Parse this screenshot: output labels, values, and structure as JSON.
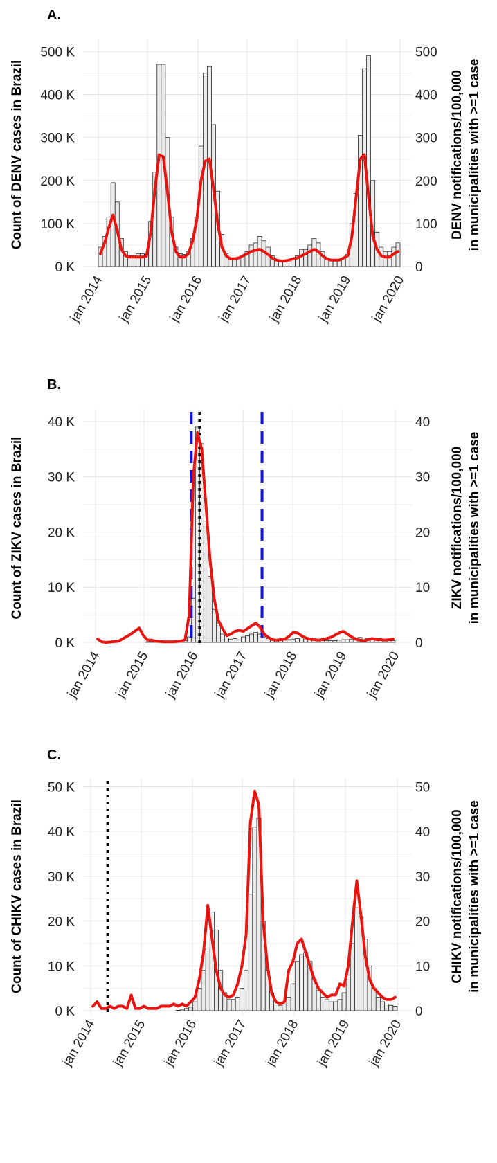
{
  "chart_data": [
    {
      "type": "bar",
      "panel_label": "A.",
      "ylabel_left": "Count of DENV cases in Brazil",
      "ylabel_right_lines": [
        "DENV notifications/100,000",
        "in municipalities with >=1 case"
      ],
      "y_ticks_left": [
        "0 K",
        "100 K",
        "200 K",
        "300 K",
        "400 K",
        "500 K"
      ],
      "y_ticks_right": [
        "0",
        "100",
        "200",
        "300",
        "400",
        "500"
      ],
      "x_ticks": [
        "jan 2014",
        "jan 2015",
        "jan 2016",
        "jan 2017",
        "jan 2018",
        "jan 2019",
        "jan 2020"
      ],
      "ylim": [
        0,
        520000
      ],
      "rate_scale": 1000,
      "grid": true,
      "bars_monthly": [
        45000,
        70000,
        115000,
        195000,
        150000,
        65000,
        35000,
        25000,
        25000,
        30000,
        30000,
        28000,
        105000,
        220000,
        470000,
        470000,
        300000,
        115000,
        45000,
        30000,
        28000,
        35000,
        65000,
        115000,
        280000,
        450000,
        465000,
        330000,
        175000,
        75000,
        30000,
        18000,
        15000,
        20000,
        25000,
        35000,
        50000,
        55000,
        70000,
        60000,
        45000,
        25000,
        15000,
        12000,
        12000,
        15000,
        20000,
        25000,
        40000,
        40000,
        50000,
        65000,
        55000,
        35000,
        20000,
        15000,
        15000,
        15000,
        20000,
        28000,
        100000,
        170000,
        305000,
        460000,
        490000,
        200000,
        80000,
        45000,
        35000,
        35000,
        45000,
        55000
      ],
      "series": [
        {
          "name": "notifications/100,000",
          "x_months": [
            0,
            1,
            2,
            3,
            4,
            5,
            6,
            7,
            8,
            9,
            10,
            11,
            12,
            13,
            14,
            15,
            16,
            17,
            18,
            19,
            20,
            21,
            22,
            23,
            24,
            25,
            26,
            27,
            28,
            29,
            30,
            31,
            32,
            33,
            34,
            35,
            36,
            37,
            38,
            39,
            40,
            41,
            42,
            43,
            44,
            45,
            46,
            47,
            48,
            49,
            50,
            51,
            52,
            53,
            54,
            55,
            56,
            57,
            58,
            59,
            60,
            61,
            62,
            63,
            64,
            65,
            66,
            67,
            68,
            69,
            70,
            71
          ],
          "values": [
            30,
            55,
            90,
            120,
            85,
            40,
            25,
            22,
            22,
            22,
            22,
            24,
            80,
            180,
            260,
            255,
            175,
            80,
            35,
            22,
            22,
            30,
            60,
            110,
            200,
            245,
            250,
            180,
            100,
            45,
            25,
            18,
            18,
            20,
            25,
            30,
            35,
            38,
            40,
            35,
            28,
            20,
            15,
            13,
            13,
            15,
            18,
            20,
            25,
            30,
            35,
            40,
            35,
            25,
            18,
            15,
            15,
            15,
            20,
            25,
            70,
            160,
            250,
            260,
            160,
            70,
            40,
            25,
            22,
            22,
            30,
            35
          ]
        }
      ]
    },
    {
      "type": "bar",
      "panel_label": "B.",
      "ylabel_left": "Count of ZIKV cases in Brazil",
      "ylabel_right_lines": [
        "ZIKV notifications/100,000",
        "in municipalities with >=1 case"
      ],
      "y_ticks_left": [
        "0 K",
        "10 K",
        "20 K",
        "30 K",
        "40 K"
      ],
      "y_ticks_right": [
        "0",
        "10",
        "20",
        "30",
        "40"
      ],
      "x_ticks": [
        "jan 2014",
        "jan 2015",
        "jan 2016",
        "jan 2017",
        "jan 2018",
        "jan 2019",
        "jan 2020"
      ],
      "ylim": [
        0,
        41500
      ],
      "rate_scale": 1000,
      "grid": true,
      "bars_monthly": [
        0,
        0,
        0,
        0,
        0,
        0,
        0,
        0,
        0,
        0,
        0,
        0,
        100,
        200,
        200,
        200,
        200,
        200,
        200,
        200,
        200,
        300,
        1000,
        8000,
        39000,
        36000,
        22000,
        12000,
        6000,
        3500,
        1500,
        800,
        600,
        700,
        800,
        1000,
        1200,
        1500,
        1800,
        1500,
        1000,
        700,
        500,
        400,
        400,
        400,
        500,
        600,
        700,
        800,
        900,
        700,
        500,
        400,
        300,
        300,
        300,
        300,
        400,
        500,
        500,
        600,
        700,
        900,
        800,
        700,
        500,
        400,
        300,
        300,
        300,
        300
      ],
      "series": [
        {
          "name": "notifications/100,000",
          "x_months": [
            0,
            1,
            2,
            5,
            8,
            10,
            11,
            12,
            13,
            14,
            16,
            18,
            20,
            21,
            22,
            23,
            24,
            25,
            26,
            27,
            28,
            29,
            30,
            31,
            32,
            33,
            34,
            35,
            36,
            37,
            38,
            39,
            40,
            41,
            42,
            43,
            44,
            45,
            46,
            47,
            48,
            49,
            50,
            51,
            52,
            53,
            54,
            55,
            56,
            57,
            58,
            59,
            60,
            61,
            62,
            63,
            64,
            65,
            66,
            67,
            68,
            69,
            70,
            71
          ],
          "values": [
            0.6,
            0.1,
            0,
            0.2,
            1.5,
            2.6,
            1.2,
            0.4,
            0.4,
            0.2,
            0.1,
            0.1,
            0.2,
            0.5,
            5,
            30,
            38,
            35,
            25,
            15,
            8,
            4,
            2.5,
            1.2,
            1.5,
            2,
            2.2,
            2,
            2.5,
            3,
            3.5,
            2.8,
            1.5,
            0.9,
            0.5,
            0.4,
            0.5,
            0.6,
            1.1,
            1.8,
            1.7,
            1.2,
            0.8,
            0.6,
            0.5,
            0.4,
            0.5,
            0.7,
            0.9,
            1.3,
            1.7,
            2,
            1.5,
            1,
            0.6,
            0.4,
            0.3,
            0.5,
            0.7,
            0.5,
            0.5,
            0.4,
            0.5,
            0.6
          ]
        }
      ],
      "vlines": [
        {
          "month": 22.5,
          "style": "blue-dashed"
        },
        {
          "month": 39.5,
          "style": "blue-dashed"
        },
        {
          "month": 24.5,
          "style": "black-dotted"
        }
      ]
    },
    {
      "type": "bar",
      "panel_label": "C.",
      "ylabel_left": "Count of CHIKV cases in Brazil",
      "ylabel_right_lines": [
        "CHIKV notifications/100,000",
        "in municipalities with >=1 case"
      ],
      "y_ticks_left": [
        "0 K",
        "10 K",
        "20 K",
        "30 K",
        "40 K",
        "50 K"
      ],
      "y_ticks_right": [
        "0",
        "10",
        "20",
        "30",
        "40",
        "50"
      ],
      "x_ticks": [
        "jan 2014",
        "jan 2015",
        "jan 2016",
        "jan 2017",
        "jan 2018",
        "jan 2019",
        "jan 2020"
      ],
      "ylim": [
        0,
        51000
      ],
      "rate_scale": 1000,
      "grid": true,
      "bars_monthly": [
        0,
        0,
        0,
        0,
        0,
        0,
        0,
        0,
        0,
        0,
        0,
        0,
        0,
        0,
        0,
        0,
        0,
        0,
        0,
        0,
        100,
        300,
        500,
        800,
        2000,
        5000,
        9000,
        14000,
        22000,
        18000,
        9000,
        4000,
        2500,
        2500,
        3000,
        5000,
        9000,
        26000,
        41000,
        43000,
        20000,
        9000,
        4000,
        1500,
        1200,
        1500,
        3000,
        6000,
        11000,
        12500,
        13000,
        11000,
        7000,
        4500,
        3000,
        2500,
        2000,
        2000,
        2500,
        4000,
        8000,
        15000,
        23000,
        21000,
        16000,
        10000,
        5000,
        3000,
        2000,
        1500,
        1200,
        1000
      ],
      "series": [
        {
          "name": "notifications/100,000",
          "x_months": [
            0,
            1,
            2,
            3,
            4,
            5,
            6,
            7,
            8,
            9,
            10,
            11,
            12,
            13,
            14,
            15,
            16,
            17,
            18,
            19,
            20,
            21,
            22,
            23,
            24,
            25,
            26,
            27,
            28,
            29,
            30,
            31,
            32,
            33,
            34,
            35,
            36,
            37,
            38,
            39,
            40,
            41,
            42,
            43,
            44,
            45,
            46,
            47,
            48,
            49,
            50,
            51,
            52,
            53,
            54,
            55,
            56,
            57,
            58,
            59,
            60,
            61,
            62,
            63,
            64,
            65,
            66,
            67,
            68,
            69,
            70,
            71
          ],
          "values": [
            1,
            2,
            0.5,
            0.5,
            1,
            0.5,
            1,
            1,
            0.5,
            3.5,
            0.5,
            0.5,
            1,
            0.5,
            0.5,
            0.5,
            1,
            1,
            1,
            1.5,
            1,
            1.5,
            1,
            2,
            3,
            7,
            13,
            23.5,
            16,
            9,
            5,
            3.5,
            3,
            3.5,
            6,
            10,
            17,
            42,
            49,
            46,
            20,
            10,
            4,
            2,
            1.5,
            2,
            9,
            11,
            15,
            16,
            13,
            10,
            7,
            5,
            4,
            3,
            3.5,
            3.5,
            6,
            5.5,
            10,
            20,
            29,
            21,
            12,
            7,
            5,
            4,
            3,
            2.5,
            2.5,
            3
          ]
        }
      ],
      "vlines": [
        {
          "month": 3.5,
          "style": "black-dotted"
        }
      ]
    }
  ]
}
